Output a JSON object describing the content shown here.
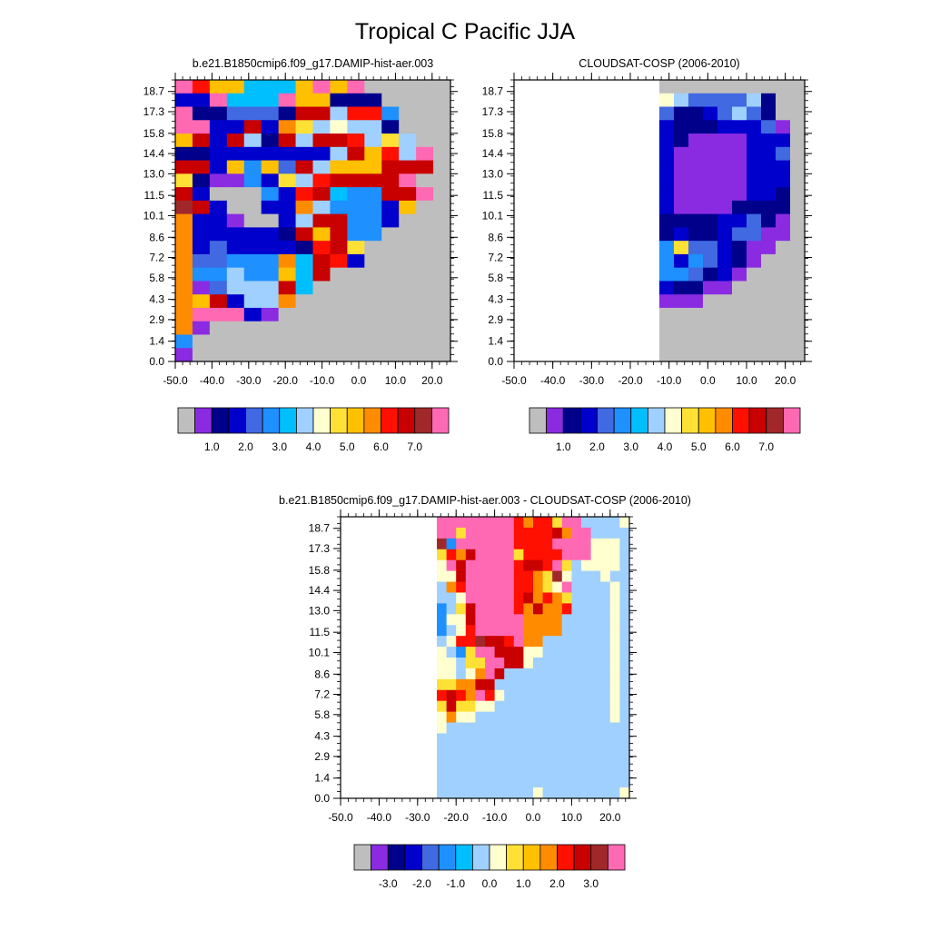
{
  "title": "Tropical C Pacific JJA",
  "chart_data": [
    {
      "type": "heatmap",
      "title": "b.e21.B1850cmip6.f09_g17.DAMIP-hist-aer.003",
      "x_ticks": [
        "-50.0",
        "-40.0",
        "-30.0",
        "-20.0",
        "-10.0",
        "0.0",
        "10.0",
        "20.0"
      ],
      "y_ticks": [
        "0.0",
        "1.4",
        "2.9",
        "4.3",
        "5.8",
        "7.2",
        "8.6",
        "10.1",
        "11.5",
        "13.0",
        "14.4",
        "15.8",
        "17.3",
        "18.7"
      ],
      "xlim": [
        -50,
        25
      ],
      "ylim": [
        0,
        19.5
      ],
      "colorbar": {
        "colors": [
          "#bebebe",
          "#8a2be2",
          "#00008b",
          "#0000cd",
          "#4169e1",
          "#1e90ff",
          "#00bfff",
          "#a0d0ff",
          "#ffffd0",
          "#ffe135",
          "#ffc000",
          "#ff8c00",
          "#ff1000",
          "#c80000",
          "#a0282a",
          "#ff69b4"
        ],
        "labels": [
          "1.0",
          "2.0",
          "3.0",
          "4.0",
          "5.0",
          "6.0",
          "7.0"
        ]
      },
      "rows": [
        "PRWWCCCWPWPGGGGG",
        "DDPCCCPWWZZZGGGG",
        "PZZLLLZMMSRRBGGG",
        "PPDDMDOQSYSSZGGG",
        "WMDMSZMSMMRSQSGG",
        "ZZDDDDDDDSMWRSPG",
        "MMDWBWLMSWWWMMMG",
        "QZVVBDQSRMMMMPGG",
        "MDGGGBDRMCBBMMPG",
        "KMDGGDDOSBBBDWGG",
        "ODDVGGDSMMBBDGGG",
        "ODDDDDNMWMBBGGGG",
        "ODLDDDDNRMQGGGGG",
        "OLLBBBOCMRDGGGGG",
        "OBBSBBWCMGGGGGGG",
        "OVLSSSMCGGGGGGGG",
        "OWMDSSOGGGGGGGGG",
        "OPPPDVGGGGGGGGGG",
        "OVGGGGGGGGGGGGGG",
        "BGGGGGGGGGGGGGGG",
        "VGGGGGGGGGGGGGGG"
      ]
    },
    {
      "type": "heatmap",
      "title": "CLOUDSAT-COSP (2006-2010)",
      "x_ticks": [
        "-50.0",
        "-40.0",
        "-30.0",
        "-20.0",
        "-10.0",
        "0.0",
        "10.0",
        "20.0"
      ],
      "y_ticks": [
        "0.0",
        "1.4",
        "2.9",
        "4.3",
        "5.8",
        "7.2",
        "8.6",
        "10.1",
        "11.5",
        "13.0",
        "14.4",
        "15.8",
        "17.3",
        "18.7"
      ],
      "xlim": [
        -50,
        25
      ],
      "ylim": [
        0,
        19.5
      ],
      "colorbar": {
        "colors": [
          "#bebebe",
          "#8a2be2",
          "#00008b",
          "#0000cd",
          "#4169e1",
          "#1e90ff",
          "#00bfff",
          "#a0d0ff",
          "#ffffd0",
          "#ffe135",
          "#ffc000",
          "#ff8c00",
          "#ff1000",
          "#c80000",
          "#a0282a",
          "#ff69b4"
        ],
        "labels": [
          "1.0",
          "2.0",
          "3.0",
          "4.0",
          "5.0",
          "6.0",
          "7.0"
        ]
      },
      "rows": [
        "..........GGGGGGGGGG",
        "..........YSLLLLSNGG",
        "..........LNNDLSLNGG",
        "..........DNNNDDDLVG",
        "..........DNVVVVDDDG",
        "..........DVVVVVDDLG",
        "..........DVVVVVDDDG",
        "..........DVVVVVDDDG",
        "..........DVVVVVDDNG",
        "..........DVVVVNNNNG",
        "..........NNNNDDLNVG",
        "..........NDNNDLLVVG",
        "..........BQLLDNVVGG",
        "..........BDBLDNVGGG",
        "..........BBLNDVGGGG",
        "..........DNNVVGGGGG",
        "..........VVVGGGGGGG",
        "..........GGGGGGGGGG",
        "..........GGGGGGGGGG",
        "..........GGGGGGGGGG",
        "..........GGGGGGGGGG"
      ]
    },
    {
      "type": "heatmap",
      "title": "b.e21.B1850cmip6.f09_g17.DAMIP-hist-aer.003 - CLOUDSAT-COSP (2006-2010)",
      "x_ticks": [
        "-50.0",
        "-40.0",
        "-30.0",
        "-20.0",
        "-10.0",
        "0.0",
        "10.0",
        "20.0"
      ],
      "y_ticks": [
        "0.0",
        "1.4",
        "2.9",
        "4.3",
        "5.8",
        "7.2",
        "8.6",
        "10.1",
        "11.5",
        "13.0",
        "14.4",
        "15.8",
        "17.3",
        "18.7"
      ],
      "xlim": [
        -50,
        25
      ],
      "ylim": [
        0,
        19.5
      ],
      "colorbar": {
        "colors": [
          "#bebebe",
          "#8a2be2",
          "#00008b",
          "#0000cd",
          "#4169e1",
          "#1e90ff",
          "#00bfff",
          "#a0d0ff",
          "#ffffd0",
          "#ffe135",
          "#ffc000",
          "#ff8c00",
          "#ff1000",
          "#c80000",
          "#a0282a",
          "#ff69b4"
        ],
        "labels": [
          "-3.0",
          "-2.0",
          "-1.0",
          "0.0",
          "1.0",
          "2.0",
          "3.0"
        ]
      },
      "rows": [
        "..........PPPPPPPPRORRQPPSSSSY",
        "..........PPQPPPPPRRRRMOPPSSSS",
        "..........KBPPPPPPRRRRPPPPYYYS",
        "..........QROMPPPPQRRRRPPPYYYS",
        "..........YPMPPPPPRMMRPQSYYYYS",
        "..........YYMPPPPPRROQKYSSSYSS",
        "..........SORPPPPPRROQYPSSSSYS",
        "..........SSYPPPPPRMOROQSSSSYS",
        "..........BSQMPPPPROMOORSSSSYS",
        "..........BYYMPPPPPOOOOSSSSSYS",
        "..........BSYRPPPPPOOOOSSSSSYS",
        "..........SYRRKMMRPOOSSSSSSSYS",
        "..........YSBQPPMMMYYSSSSSSSYS",
        "..........YYSQQPPMMYSSSSSSSSYS",
        "..........YYSYOPMSSSSSSSSSSSYS",
        "..........QQOOMMSSSSSSSSSSSSYS",
        "..........RMROPRYSSSSSSSSSSSYS",
        "..........QMQQYYSSSSSSSSSSSSYS",
        "..........YOYYSSSSSSSSSSSSSSYS",
        "..........YSSSSSSSSSSSSSSSSSSS",
        "..........SSSSSSSSSSSSSSSSSSSS",
        "..........SSSSSSSSSSSSSSSSSSSS",
        "..........SSSSSSSSSSSSSSSSSSSS",
        "..........SSSSSSSSSSSSSSSSSSSS",
        "..........SSSSSSSSSSSSSSSSSSSS",
        "..........SSSSSSSSSSYSSSSSSSSY"
      ]
    }
  ],
  "legend_key": {
    "G": "#bebebe",
    "V": "#8a2be2",
    "N": "#00008b",
    "D": "#0000cd",
    "L": "#4169e1",
    "B": "#1e90ff",
    "C": "#00bfff",
    "S": "#a0d0ff",
    "Y": "#ffffd0",
    "Q": "#ffe135",
    "W": "#ffc000",
    "O": "#ff8c00",
    "R": "#ff1000",
    "M": "#c80000",
    "K": "#a0282a",
    "P": "#ff69b4",
    "Z": "#00008b"
  }
}
